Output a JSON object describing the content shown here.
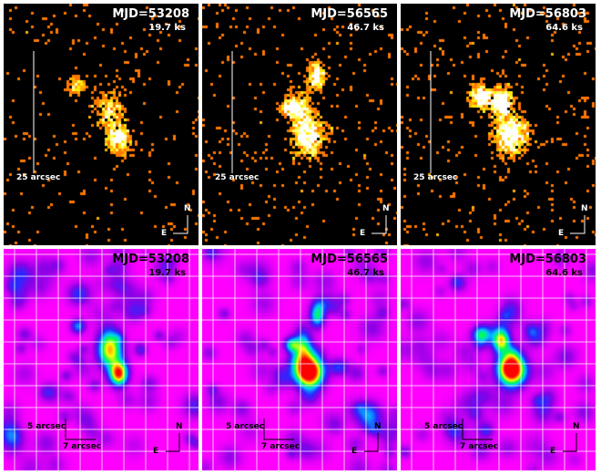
{
  "panels": [
    {
      "mjd": "MJD=53208",
      "exposure": "19.7 ks"
    },
    {
      "mjd": "MJD=56565",
      "exposure": "46.7 ks"
    },
    {
      "mjd": "MJD=56803",
      "exposure": "64.6 ks"
    }
  ],
  "top_row": {
    "scale_label": "25 arcsec",
    "north": "N",
    "east": "E",
    "colormap": "hot (counts)"
  },
  "bottom_row": {
    "scale_label_v": "5 arcsec",
    "scale_label_h": "7 arcsec",
    "north": "N",
    "east": "E",
    "colormap": "rainbow smoothed",
    "grid": true
  },
  "colors": {
    "top_background": "#000000",
    "bottom_background": "#ff00ff",
    "divider": "#ffffff"
  }
}
